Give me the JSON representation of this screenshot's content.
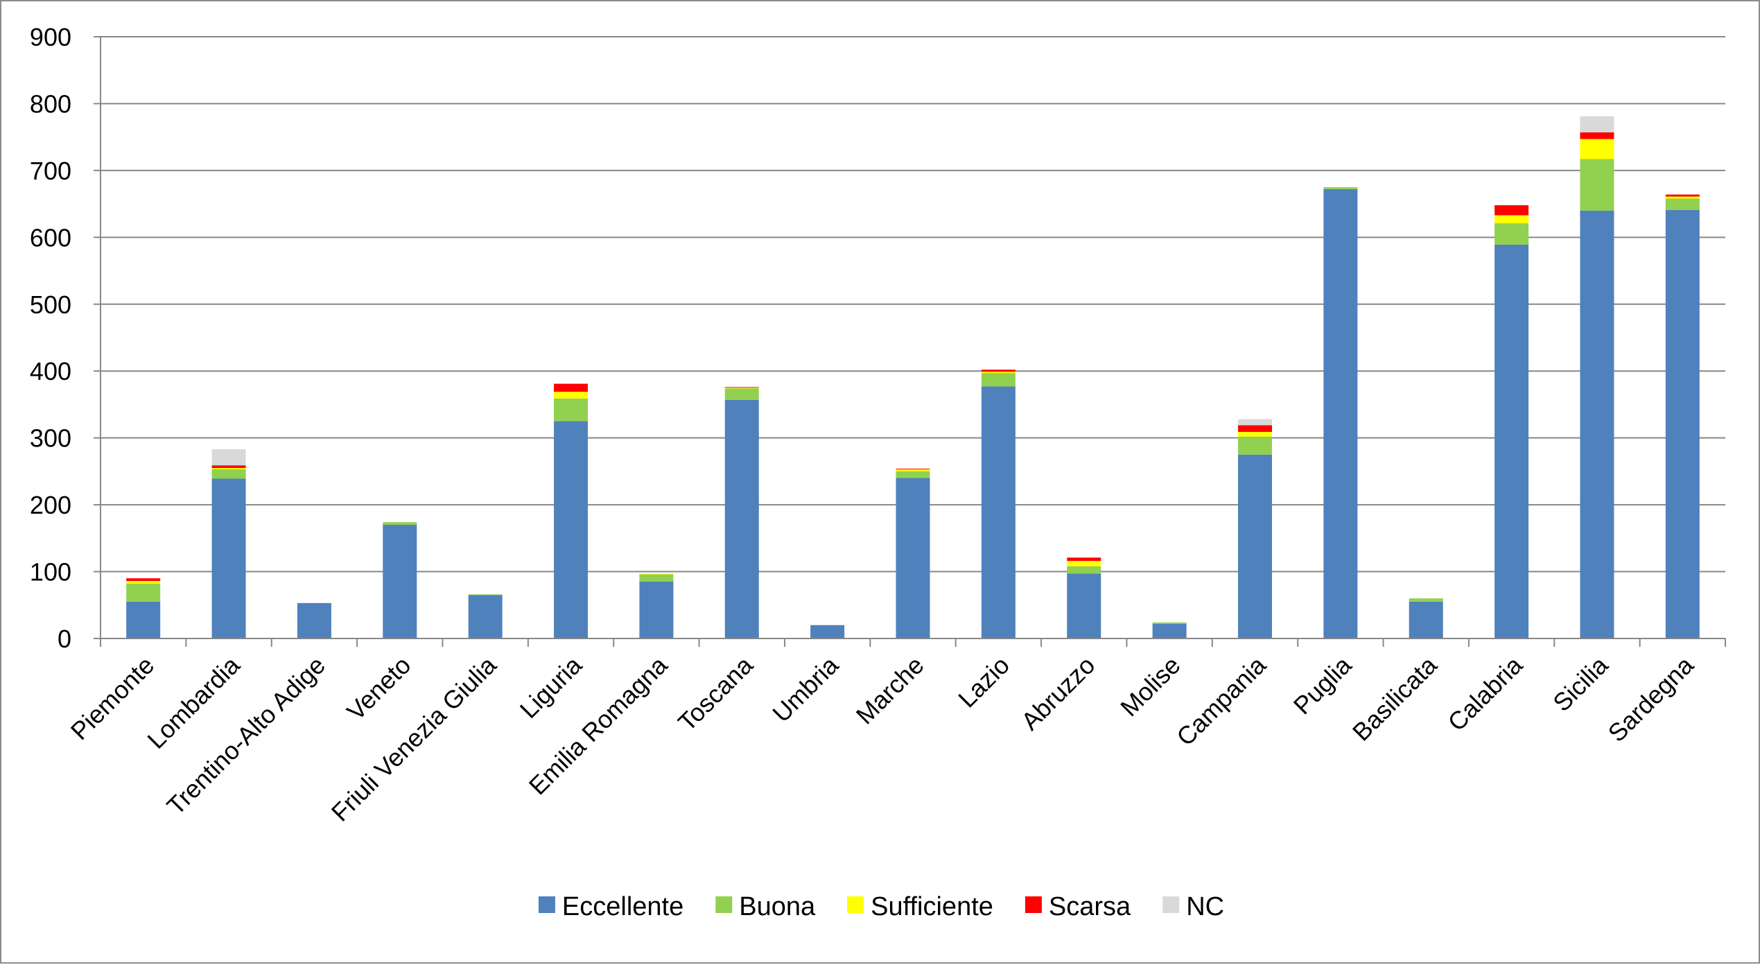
{
  "chart_data": {
    "type": "bar",
    "stacked": true,
    "categories": [
      "Piemonte",
      "Lombardia",
      "Trentino-Alto Adige",
      "Veneto",
      "Friuli Venezia Giulia",
      "Liguria",
      "Emilia Romagna",
      "Toscana",
      "Umbria",
      "Marche",
      "Lazio",
      "Abruzzo",
      "Molise",
      "Campania",
      "Puglia",
      "Basilicata",
      "Calabria",
      "Sicilia",
      "Sardegna"
    ],
    "series": [
      {
        "name": "Eccellente",
        "color": "#4f81bd",
        "values": [
          55,
          239,
          53,
          170,
          65,
          325,
          85,
          357,
          20,
          240,
          377,
          97,
          22,
          275,
          672,
          55,
          589,
          640,
          641
        ]
      },
      {
        "name": "Buona",
        "color": "#92d050",
        "values": [
          27,
          14,
          0,
          4,
          1,
          34,
          11,
          17,
          0,
          10,
          20,
          11,
          2,
          27,
          3,
          5,
          32,
          77,
          17
        ]
      },
      {
        "name": "Sufficiente",
        "color": "#ffff00",
        "values": [
          4,
          2,
          0,
          0,
          0,
          10,
          1,
          1,
          0,
          3,
          2,
          8,
          0,
          7,
          0,
          0,
          12,
          30,
          3
        ]
      },
      {
        "name": "Scarsa",
        "color": "#ff0000",
        "values": [
          4,
          4,
          0,
          0,
          0,
          12,
          0,
          1,
          0,
          1,
          3,
          5,
          0,
          10,
          0,
          0,
          15,
          10,
          3
        ]
      },
      {
        "name": "NC",
        "color": "#d9d9d9",
        "values": [
          0,
          24,
          0,
          0,
          0,
          0,
          0,
          0,
          0,
          0,
          0,
          0,
          0,
          9,
          0,
          0,
          0,
          24,
          0
        ]
      }
    ],
    "ylim": [
      0,
      900
    ],
    "yticks": [
      0,
      100,
      200,
      300,
      400,
      500,
      600,
      700,
      800,
      900
    ],
    "title": "",
    "xlabel": "",
    "ylabel": "",
    "grid": true,
    "legend_position": "bottom",
    "gridline_color": "#878787",
    "axis_color": "#878787"
  }
}
